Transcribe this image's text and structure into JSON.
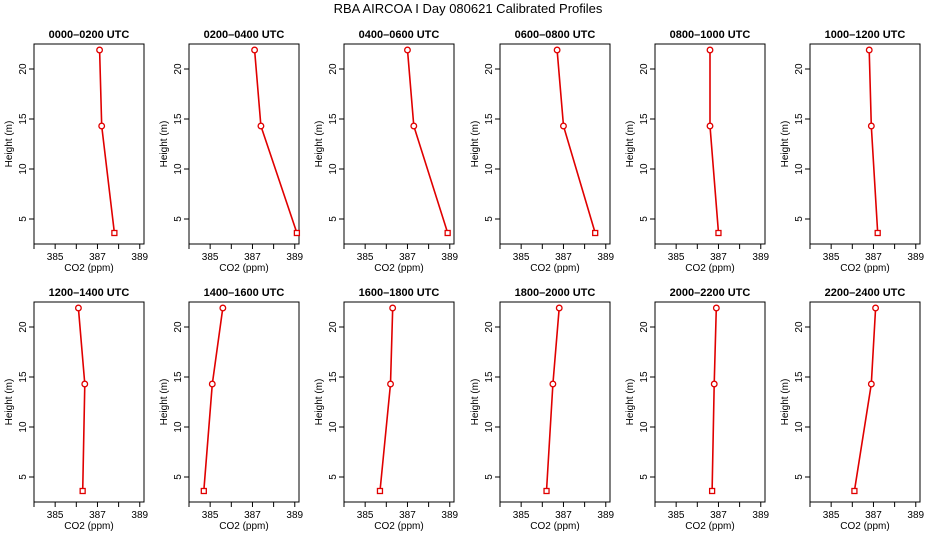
{
  "title": "RBA AIRCOA I  Day 080621  Calibrated Profiles",
  "colors": {
    "line": "#e00000",
    "axis": "#000000"
  },
  "chart_data": [
    {
      "type": "line",
      "title": "0000–0200 UTC",
      "xlabel": "CO2 (ppm)",
      "ylabel": "Height (m)",
      "xlim": [
        384,
        389.2
      ],
      "ylim": [
        2.5,
        22.5
      ],
      "xticks": [
        385,
        387,
        389
      ],
      "yticks": [
        5,
        10,
        15,
        20
      ],
      "points": [
        {
          "x": 387.1,
          "y": 21.9
        },
        {
          "x": 387.2,
          "y": 14.3
        },
        {
          "x": 387.8,
          "y": 3.6
        }
      ]
    },
    {
      "type": "line",
      "title": "0200–0400 UTC",
      "xlabel": "CO2 (ppm)",
      "ylabel": "Height (m)",
      "xlim": [
        384,
        389.2
      ],
      "ylim": [
        2.5,
        22.5
      ],
      "xticks": [
        385,
        387,
        389
      ],
      "yticks": [
        5,
        10,
        15,
        20
      ],
      "points": [
        {
          "x": 387.1,
          "y": 21.9
        },
        {
          "x": 387.4,
          "y": 14.3
        },
        {
          "x": 389.1,
          "y": 3.6
        }
      ]
    },
    {
      "type": "line",
      "title": "0400–0600 UTC",
      "xlabel": "CO2 (ppm)",
      "ylabel": "Height (m)",
      "xlim": [
        384,
        389.2
      ],
      "ylim": [
        2.5,
        22.5
      ],
      "xticks": [
        385,
        387,
        389
      ],
      "yticks": [
        5,
        10,
        15,
        20
      ],
      "points": [
        {
          "x": 387.0,
          "y": 21.9
        },
        {
          "x": 387.3,
          "y": 14.3
        },
        {
          "x": 388.9,
          "y": 3.6
        }
      ]
    },
    {
      "type": "line",
      "title": "0600–0800 UTC",
      "xlabel": "CO2 (ppm)",
      "ylabel": "Height (m)",
      "xlim": [
        384,
        389.2
      ],
      "ylim": [
        2.5,
        22.5
      ],
      "xticks": [
        385,
        387,
        389
      ],
      "yticks": [
        5,
        10,
        15,
        20
      ],
      "points": [
        {
          "x": 386.7,
          "y": 21.9
        },
        {
          "x": 387.0,
          "y": 14.3
        },
        {
          "x": 388.5,
          "y": 3.6
        }
      ]
    },
    {
      "type": "line",
      "title": "0800–1000 UTC",
      "xlabel": "CO2 (ppm)",
      "ylabel": "Height (m)",
      "xlim": [
        384,
        389.2
      ],
      "ylim": [
        2.5,
        22.5
      ],
      "xticks": [
        385,
        387,
        389
      ],
      "yticks": [
        5,
        10,
        15,
        20
      ],
      "points": [
        {
          "x": 386.6,
          "y": 21.9
        },
        {
          "x": 386.6,
          "y": 14.3
        },
        {
          "x": 387.0,
          "y": 3.6
        }
      ]
    },
    {
      "type": "line",
      "title": "1000–1200 UTC",
      "xlabel": "CO2 (ppm)",
      "ylabel": "Height (m)",
      "xlim": [
        384,
        389.2
      ],
      "ylim": [
        2.5,
        22.5
      ],
      "xticks": [
        385,
        387,
        389
      ],
      "yticks": [
        5,
        10,
        15,
        20
      ],
      "points": [
        {
          "x": 386.8,
          "y": 21.9
        },
        {
          "x": 386.9,
          "y": 14.3
        },
        {
          "x": 387.2,
          "y": 3.6
        }
      ]
    },
    {
      "type": "line",
      "title": "1200–1400 UTC",
      "xlabel": "CO2 (ppm)",
      "ylabel": "Height (m)",
      "xlim": [
        384,
        389.2
      ],
      "ylim": [
        2.5,
        22.5
      ],
      "xticks": [
        385,
        387,
        389
      ],
      "yticks": [
        5,
        10,
        15,
        20
      ],
      "points": [
        {
          "x": 386.1,
          "y": 21.9
        },
        {
          "x": 386.4,
          "y": 14.3
        },
        {
          "x": 386.3,
          "y": 3.6
        }
      ]
    },
    {
      "type": "line",
      "title": "1400–1600 UTC",
      "xlabel": "CO2 (ppm)",
      "ylabel": "Height (m)",
      "xlim": [
        384,
        389.2
      ],
      "ylim": [
        2.5,
        22.5
      ],
      "xticks": [
        385,
        387,
        389
      ],
      "yticks": [
        5,
        10,
        15,
        20
      ],
      "points": [
        {
          "x": 385.6,
          "y": 21.9
        },
        {
          "x": 385.1,
          "y": 14.3
        },
        {
          "x": 384.7,
          "y": 3.6
        }
      ]
    },
    {
      "type": "line",
      "title": "1600–1800 UTC",
      "xlabel": "CO2 (ppm)",
      "ylabel": "Height (m)",
      "xlim": [
        384,
        389.2
      ],
      "ylim": [
        2.5,
        22.5
      ],
      "xticks": [
        385,
        387,
        389
      ],
      "yticks": [
        5,
        10,
        15,
        20
      ],
      "points": [
        {
          "x": 386.3,
          "y": 21.9
        },
        {
          "x": 386.2,
          "y": 14.3
        },
        {
          "x": 385.7,
          "y": 3.6
        }
      ]
    },
    {
      "type": "line",
      "title": "1800–2000 UTC",
      "xlabel": "CO2 (ppm)",
      "ylabel": "Height (m)",
      "xlim": [
        384,
        389.2
      ],
      "ylim": [
        2.5,
        22.5
      ],
      "xticks": [
        385,
        387,
        389
      ],
      "yticks": [
        5,
        10,
        15,
        20
      ],
      "points": [
        {
          "x": 386.8,
          "y": 21.9
        },
        {
          "x": 386.5,
          "y": 14.3
        },
        {
          "x": 386.2,
          "y": 3.6
        }
      ]
    },
    {
      "type": "line",
      "title": "2000–2200 UTC",
      "xlabel": "CO2 (ppm)",
      "ylabel": "Height (m)",
      "xlim": [
        384,
        389.2
      ],
      "ylim": [
        2.5,
        22.5
      ],
      "xticks": [
        385,
        387,
        389
      ],
      "yticks": [
        5,
        10,
        15,
        20
      ],
      "points": [
        {
          "x": 386.9,
          "y": 21.9
        },
        {
          "x": 386.8,
          "y": 14.3
        },
        {
          "x": 386.7,
          "y": 3.6
        }
      ]
    },
    {
      "type": "line",
      "title": "2200–2400 UTC",
      "xlabel": "CO2 (ppm)",
      "ylabel": "Height (m)",
      "xlim": [
        384,
        389.2
      ],
      "ylim": [
        2.5,
        22.5
      ],
      "xticks": [
        385,
        387,
        389
      ],
      "yticks": [
        5,
        10,
        15,
        20
      ],
      "points": [
        {
          "x": 387.1,
          "y": 21.9
        },
        {
          "x": 386.9,
          "y": 14.3
        },
        {
          "x": 386.1,
          "y": 3.6
        }
      ]
    }
  ]
}
